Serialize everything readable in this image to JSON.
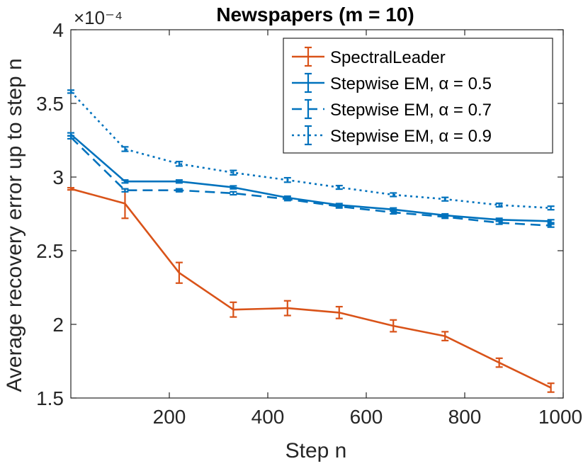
{
  "chart_data": {
    "type": "line",
    "title": "Newspapers (m = 10)",
    "xlabel": "Step n",
    "ylabel": "Average recovery error up to step n",
    "exponent_label": "×10⁻⁴",
    "xlim": [
      0,
      1000
    ],
    "ylim": [
      1.5,
      4
    ],
    "xticks": [
      200,
      400,
      600,
      800,
      1000
    ],
    "yticks": [
      1.5,
      2,
      2.5,
      3,
      3.5,
      4
    ],
    "x": [
      0,
      110,
      220,
      330,
      440,
      545,
      655,
      760,
      870,
      975
    ],
    "series": [
      {
        "name": "SpectralLeader",
        "color": "#D95319",
        "style": "solid",
        "values": [
          2.92,
          2.82,
          2.35,
          2.1,
          2.11,
          2.08,
          1.99,
          1.92,
          1.74,
          1.57
        ],
        "errors": [
          0,
          0.1,
          0.07,
          0.05,
          0.05,
          0.04,
          0.04,
          0.03,
          0.03,
          0.03
        ]
      },
      {
        "name": "Stepwise EM, α = 0.5",
        "color": "#0072BD",
        "style": "solid",
        "values": [
          3.29,
          2.97,
          2.97,
          2.93,
          2.86,
          2.81,
          2.78,
          2.74,
          2.71,
          2.7
        ],
        "errors": [
          0.01,
          0.01,
          0.01,
          0.01,
          0.01,
          0.01,
          0.01,
          0.01,
          0.01,
          0.01
        ]
      },
      {
        "name": "Stepwise EM, α = 0.7",
        "color": "#0072BD",
        "style": "dashed",
        "values": [
          3.27,
          2.91,
          2.91,
          2.89,
          2.85,
          2.8,
          2.76,
          2.73,
          2.69,
          2.67
        ],
        "errors": [
          0.01,
          0.01,
          0.01,
          0.01,
          0.01,
          0.01,
          0.01,
          0.01,
          0.01,
          0.01
        ]
      },
      {
        "name": "Stepwise EM, α = 0.9",
        "color": "#0072BD",
        "style": "dotted",
        "values": [
          3.58,
          3.19,
          3.09,
          3.03,
          2.98,
          2.93,
          2.88,
          2.85,
          2.81,
          2.79
        ],
        "errors": [
          0.01,
          0.015,
          0.015,
          0.015,
          0.015,
          0.012,
          0.012,
          0.012,
          0.012,
          0.012
        ]
      }
    ],
    "legend": [
      "SpectralLeader",
      "Stepwise EM, α = 0.5",
      "Stepwise EM, α = 0.7",
      "Stepwise EM, α = 0.9"
    ],
    "legend_location": "top-right",
    "grid": false
  }
}
